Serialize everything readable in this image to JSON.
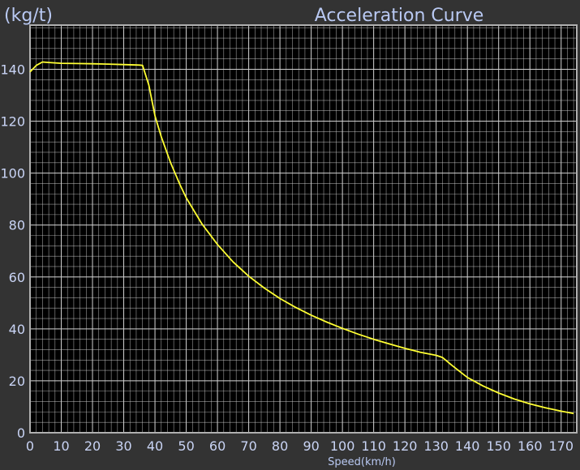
{
  "chart_data": {
    "type": "line",
    "title": "Acceleration Curve",
    "ylabel": "(kg/t)",
    "xlabel": "Speed(km/h)",
    "xlim": [
      0,
      175
    ],
    "ylim": [
      0,
      157
    ],
    "x_ticks": [
      0,
      10,
      20,
      30,
      40,
      50,
      60,
      70,
      80,
      90,
      100,
      110,
      120,
      130,
      140,
      150,
      160,
      170
    ],
    "y_ticks": [
      0,
      20,
      40,
      60,
      80,
      100,
      120,
      140
    ],
    "grid": true,
    "legend": "none",
    "colors": {
      "background": "#333333",
      "plot_background": "#000000",
      "grid": "#cfcfcf",
      "frame": "#b0b0b0",
      "line": "#ffff33",
      "text": "#c9d4f5"
    },
    "series": [
      {
        "x": [
          0,
          2,
          4,
          6,
          10,
          15,
          20,
          25,
          30,
          35,
          36,
          38,
          40,
          42,
          45,
          48,
          50,
          55,
          60,
          65,
          70,
          75,
          80,
          85,
          90,
          95,
          100,
          105,
          110,
          115,
          120,
          125,
          130,
          132,
          135,
          140,
          145,
          150,
          155,
          160,
          165,
          170,
          174
        ],
        "y": [
          139,
          141.5,
          142.8,
          142.6,
          142.3,
          142.2,
          142.1,
          142.0,
          141.8,
          141.6,
          141.5,
          134,
          122,
          114,
          104,
          95.5,
          90.5,
          80.5,
          72.5,
          65.8,
          60.3,
          55.7,
          51.7,
          48.3,
          45.3,
          42.6,
          40.2,
          38.0,
          36.0,
          34.2,
          32.5,
          31.0,
          29.8,
          29.0,
          26.0,
          21.3,
          18.0,
          15.3,
          13.0,
          11.1,
          9.6,
          8.3,
          7.4
        ]
      }
    ]
  }
}
